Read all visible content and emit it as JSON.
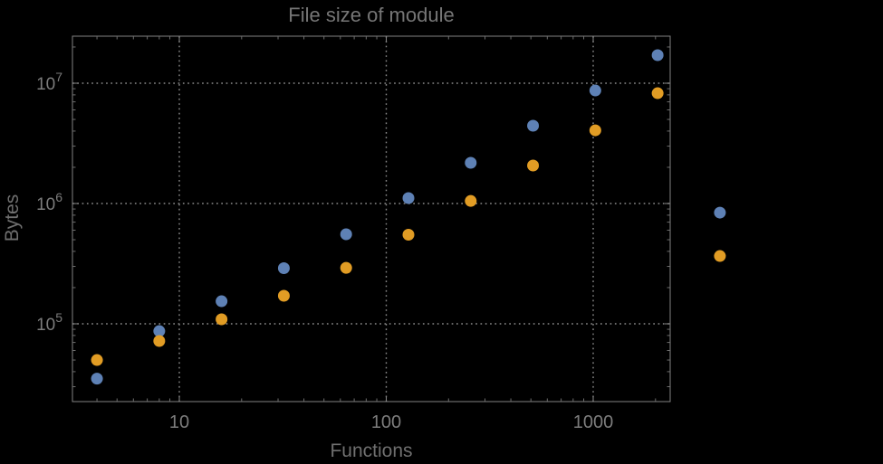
{
  "title": "File size of module",
  "colors": {
    "background": "#000000",
    "frame": "#828282",
    "grid": "#8a8a8a",
    "major_tick": "#8a8a8a",
    "minor_tick": "#6e6e6e",
    "tick_label": "#7c7c7c",
    "title_text": "#767676",
    "axis_label_text": "#6f6f6f",
    "series_blue": "#5E81B5",
    "series_orange": "#E19C24"
  },
  "chart_data": {
    "type": "scatter",
    "title": "File size of module",
    "xlabel": "Functions",
    "ylabel": "Bytes",
    "x_scale": "log",
    "y_scale": "log",
    "grid": "dotted-major",
    "legend": "none",
    "x": [
      4,
      8,
      16,
      32,
      64,
      128,
      256,
      512,
      1024,
      2048,
      4096
    ],
    "series": [
      {
        "name": "blue",
        "color": "#5E81B5",
        "values": [
          35000,
          87000,
          154000,
          290000,
          555000,
          1110000,
          2180000,
          4430000,
          8700000,
          17100000,
          840000
        ]
      },
      {
        "name": "orange",
        "color": "#E19C24",
        "values": [
          50000,
          72000,
          109000,
          171000,
          292000,
          550000,
          1050000,
          2070000,
          4060000,
          8260000,
          366000
        ]
      }
    ],
    "x_ticks": {
      "values": [
        10,
        100,
        1000
      ],
      "labels": [
        "10",
        "100",
        "1000"
      ]
    },
    "y_ticks": {
      "values": [
        100000,
        1000000,
        10000000
      ],
      "labels": [
        {
          "base": "10",
          "exp": "5"
        },
        {
          "base": "10",
          "exp": "6"
        },
        {
          "base": "10",
          "exp": "7"
        }
      ]
    },
    "xlim": [
      3.05,
      2355
    ],
    "ylim": [
      22500,
      24600000
    ]
  }
}
